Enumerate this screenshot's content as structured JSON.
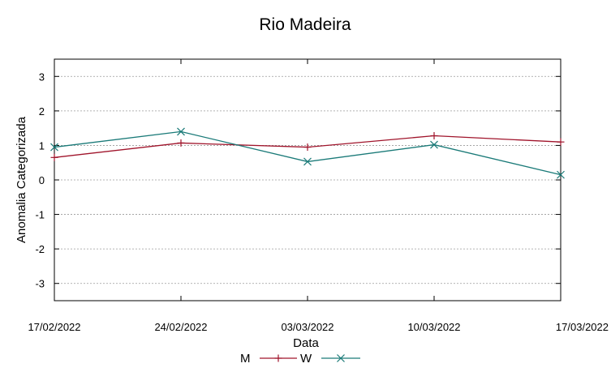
{
  "chart_data": {
    "type": "line",
    "title": "Rio Madeira",
    "xlabel": "Data",
    "ylabel": "Anomalia Categorizada",
    "categories": [
      "17/02/2022",
      "24/02/2022",
      "03/03/2022",
      "10/03/2022",
      "17/03/2022"
    ],
    "yticks": [
      "3",
      "2",
      "1",
      "0",
      "-1",
      "-2",
      "-3"
    ],
    "ylim": [
      -3.5,
      3.5
    ],
    "grid": true,
    "legend_position": "bottom-center",
    "series": [
      {
        "name": "M",
        "color": "#a0142b",
        "marker": "plus",
        "values": [
          0.65,
          1.07,
          0.95,
          1.28,
          1.1
        ]
      },
      {
        "name": "W",
        "color": "#1a7a78",
        "marker": "cross",
        "values": [
          0.95,
          1.4,
          0.53,
          1.02,
          0.15
        ]
      }
    ]
  }
}
